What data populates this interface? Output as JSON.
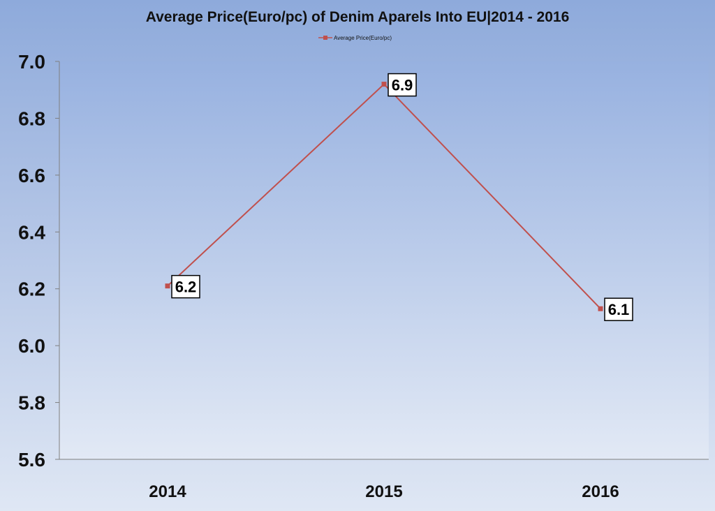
{
  "chart_data": {
    "type": "line",
    "title": "Average Price(Euro/pc) of Denim Aparels Into EU|2014 - 2016",
    "xlabel": "",
    "ylabel": "",
    "categories": [
      "2014",
      "2015",
      "2016"
    ],
    "series": [
      {
        "name": "Average Price(Euro/pc)",
        "values": [
          6.21,
          6.92,
          6.13
        ],
        "data_labels": [
          "6.2",
          "6.9",
          "6.1"
        ],
        "color": "#c0504d"
      }
    ],
    "ylim": [
      5.6,
      7.0
    ],
    "yticks": [
      "5.6",
      "5.8",
      "6.0",
      "6.2",
      "6.4",
      "6.6",
      "6.8",
      "7.0"
    ],
    "grid": false,
    "legend_position": "top"
  }
}
